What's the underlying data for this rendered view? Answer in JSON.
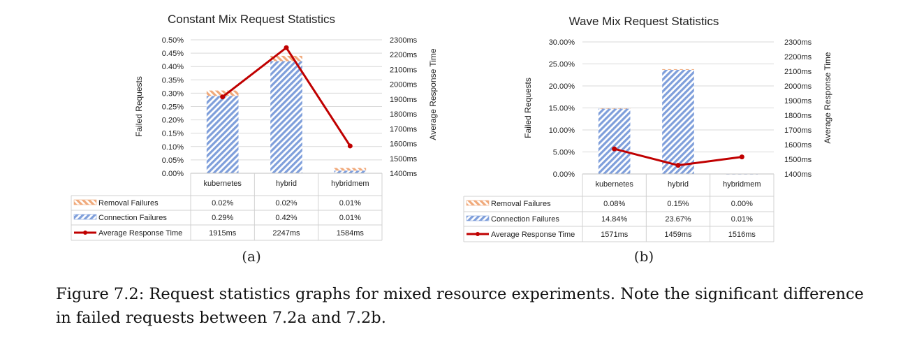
{
  "caption": {
    "text": "Figure 7.2: Request statistics graphs for mixed resource experiments. Note the significant difference in failed requests between 7.2a and 7.2b."
  },
  "colors": {
    "connection_failures": "#7f9fdb",
    "removal_failures": "#f0a97a",
    "response_line": "#c00000",
    "grid": "#d9d9d9",
    "table_border": "#d0d0d0"
  },
  "chart_data": [
    {
      "type": "bar",
      "stacked": true,
      "sublabel": "(a)",
      "title": "Constant Mix Request Statistics",
      "ylabel": "Failed Requests",
      "y2label": "Average Response Time",
      "ylim": [
        0,
        0.5
      ],
      "yticks": [
        "0.00%",
        "0.05%",
        "0.10%",
        "0.15%",
        "0.20%",
        "0.25%",
        "0.30%",
        "0.35%",
        "0.40%",
        "0.45%",
        "0.50%"
      ],
      "y2lim": [
        1400,
        2300
      ],
      "y2ticks": [
        "1400ms",
        "1500ms",
        "1600ms",
        "1700ms",
        "1800ms",
        "1900ms",
        "2000ms",
        "2100ms",
        "2200ms",
        "2300ms"
      ],
      "categories": [
        "kubernetes",
        "hybrid",
        "hybridmem"
      ],
      "grid": true,
      "legend": "data-table",
      "series": [
        {
          "name": "Removal Failures",
          "kind": "bar",
          "pattern": "hatch-orange",
          "values": [
            0.02,
            0.02,
            0.01
          ],
          "labels": [
            "0.02%",
            "0.02%",
            "0.01%"
          ]
        },
        {
          "name": "Connection Failures",
          "kind": "bar",
          "pattern": "hatch-blue",
          "values": [
            0.29,
            0.42,
            0.01
          ],
          "labels": [
            "0.29%",
            "0.42%",
            "0.01%"
          ]
        },
        {
          "name": "Average Response Time",
          "kind": "line",
          "axis": "secondary",
          "values": [
            1915,
            2247,
            1584
          ],
          "labels": [
            "1915ms",
            "2247ms",
            "1584ms"
          ]
        }
      ]
    },
    {
      "type": "bar",
      "stacked": true,
      "sublabel": "(b)",
      "title": "Wave Mix Request Statistics",
      "ylabel": "Failed Requests",
      "y2label": "Average Response Time",
      "ylim": [
        0,
        30
      ],
      "yticks": [
        "0.00%",
        "5.00%",
        "10.00%",
        "15.00%",
        "20.00%",
        "25.00%",
        "30.00%"
      ],
      "y2lim": [
        1400,
        2300
      ],
      "y2ticks": [
        "1400ms",
        "1500ms",
        "1600ms",
        "1700ms",
        "1800ms",
        "1900ms",
        "2000ms",
        "2100ms",
        "2200ms",
        "2300ms"
      ],
      "categories": [
        "kubernetes",
        "hybrid",
        "hybridmem"
      ],
      "grid": true,
      "legend": "data-table",
      "series": [
        {
          "name": "Removal Failures",
          "kind": "bar",
          "pattern": "hatch-orange",
          "values": [
            0.08,
            0.15,
            0.0
          ],
          "labels": [
            "0.08%",
            "0.15%",
            "0.00%"
          ]
        },
        {
          "name": "Connection Failures",
          "kind": "bar",
          "pattern": "hatch-blue",
          "values": [
            14.84,
            23.67,
            0.01
          ],
          "labels": [
            "14.84%",
            "23.67%",
            "0.01%"
          ]
        },
        {
          "name": "Average Response Time",
          "kind": "line",
          "axis": "secondary",
          "values": [
            1571,
            1459,
            1516
          ],
          "labels": [
            "1571ms",
            "1459ms",
            "1516ms"
          ]
        }
      ]
    }
  ]
}
